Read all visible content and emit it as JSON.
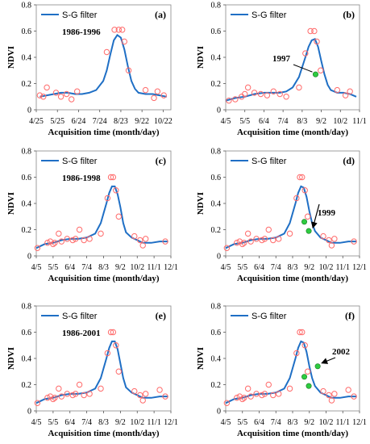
{
  "chart_data": [
    {
      "type": "scatter",
      "panel_label": "(a)",
      "legend": "S-G filter",
      "annotation": "1986-1996",
      "ylabel": "NDVI",
      "xlabel": "Acquisition time (month/day)",
      "ylim": [
        0,
        0.8
      ],
      "yticks": [
        "0",
        "0.2",
        "0.4",
        "0.6",
        "0.8"
      ],
      "xlim": [
        115,
        306
      ],
      "xticks": [
        {
          "x": 115,
          "label": "4/25"
        },
        {
          "x": 145,
          "label": "5/25"
        },
        {
          "x": 175,
          "label": "6/24"
        },
        {
          "x": 205,
          "label": "7/24"
        },
        {
          "x": 235,
          "label": "8/23"
        },
        {
          "x": 265,
          "label": "9/22"
        },
        {
          "x": 295,
          "label": "10/22"
        }
      ],
      "series": [
        {
          "name": "S-G filter",
          "kind": "line",
          "color": "#1f6fc5",
          "x": [
            120,
            130,
            140,
            150,
            160,
            170,
            180,
            190,
            200,
            210,
            215,
            220,
            225,
            230,
            235,
            240,
            245,
            250,
            255,
            260,
            270,
            280,
            290,
            300
          ],
          "y": [
            0.1,
            0.11,
            0.12,
            0.13,
            0.13,
            0.12,
            0.12,
            0.13,
            0.15,
            0.22,
            0.3,
            0.42,
            0.53,
            0.57,
            0.55,
            0.46,
            0.33,
            0.22,
            0.16,
            0.13,
            0.12,
            0.12,
            0.11,
            0.1
          ]
        },
        {
          "kind": "scatter",
          "marker": "open-circle",
          "color": "#ff6b6b",
          "x": [
            120,
            125,
            130,
            143,
            150,
            158,
            165,
            173,
            215,
            226,
            232,
            237,
            240,
            246,
            270,
            282,
            287,
            296
          ],
          "y": [
            0.11,
            0.1,
            0.17,
            0.13,
            0.1,
            0.12,
            0.08,
            0.14,
            0.44,
            0.61,
            0.61,
            0.61,
            0.52,
            0.3,
            0.15,
            0.09,
            0.14,
            0.11
          ]
        }
      ]
    },
    {
      "type": "scatter",
      "panel_label": "(b)",
      "legend": "S-G filter",
      "annotation": "1997",
      "ylabel": "NDVI",
      "xlabel": "Acquisition time (month/day)",
      "ylim": [
        0,
        0.8
      ],
      "yticks": [
        "0",
        "0.2",
        "0.4",
        "0.6",
        "0.8"
      ],
      "xlim": [
        95,
        305
      ],
      "xticks": [
        {
          "x": 95,
          "label": "4/5"
        },
        {
          "x": 125,
          "label": "5/5"
        },
        {
          "x": 155,
          "label": "6/4"
        },
        {
          "x": 185,
          "label": "7/4"
        },
        {
          "x": 215,
          "label": "8/3"
        },
        {
          "x": 245,
          "label": "9/2"
        },
        {
          "x": 275,
          "label": "10/2"
        },
        {
          "x": 305,
          "label": "11/1"
        }
      ],
      "series": [
        {
          "name": "S-G filter",
          "kind": "line",
          "color": "#1f6fc5",
          "x": [
            95,
            110,
            125,
            140,
            155,
            170,
            180,
            190,
            200,
            210,
            220,
            225,
            230,
            235,
            240,
            245,
            250,
            255,
            260,
            270,
            280,
            290,
            300
          ],
          "y": [
            0.07,
            0.09,
            0.1,
            0.12,
            0.13,
            0.13,
            0.13,
            0.14,
            0.17,
            0.25,
            0.4,
            0.48,
            0.53,
            0.54,
            0.48,
            0.37,
            0.27,
            0.19,
            0.15,
            0.13,
            0.13,
            0.12,
            0.1
          ]
        },
        {
          "kind": "scatter",
          "marker": "open-circle",
          "color": "#ff6b6b",
          "x": [
            100,
            110,
            120,
            125,
            130,
            140,
            150,
            160,
            170,
            180,
            190,
            210,
            220,
            228,
            234,
            238,
            244,
            270,
            283,
            290
          ],
          "y": [
            0.07,
            0.08,
            0.1,
            0.12,
            0.17,
            0.13,
            0.12,
            0.11,
            0.14,
            0.12,
            0.1,
            0.17,
            0.43,
            0.6,
            0.6,
            0.52,
            0.3,
            0.15,
            0.11,
            0.14
          ]
        },
        {
          "kind": "scatter",
          "marker": "filled-circle",
          "color": "#2ecc40",
          "x": [
            236
          ],
          "y": [
            0.27
          ]
        }
      ]
    },
    {
      "type": "scatter",
      "panel_label": "(c)",
      "legend": "S-G filter",
      "annotation": "1986-1998",
      "ylabel": "NDVI",
      "xlabel": "Acquisition time (month/day)",
      "ylim": [
        0,
        0.8
      ],
      "yticks": [
        "0",
        "0.2",
        "0.4",
        "0.6",
        "0.8"
      ],
      "xlim": [
        95,
        335
      ],
      "xticks": [
        {
          "x": 95,
          "label": "4/5"
        },
        {
          "x": 125,
          "label": "5/5"
        },
        {
          "x": 155,
          "label": "6/4"
        },
        {
          "x": 185,
          "label": "7/4"
        },
        {
          "x": 215,
          "label": "8/3"
        },
        {
          "x": 245,
          "label": "9/2"
        },
        {
          "x": 275,
          "label": "10/2"
        },
        {
          "x": 305,
          "label": "11/1"
        },
        {
          "x": 335,
          "label": "12/1"
        }
      ],
      "series": [
        {
          "name": "S-G filter",
          "kind": "line",
          "color": "#1f6fc5",
          "x": [
            95,
            110,
            125,
            140,
            155,
            170,
            185,
            200,
            210,
            220,
            225,
            230,
            235,
            240,
            245,
            250,
            255,
            265,
            275,
            285,
            300,
            315,
            330
          ],
          "y": [
            0.06,
            0.09,
            0.1,
            0.12,
            0.13,
            0.13,
            0.14,
            0.17,
            0.25,
            0.4,
            0.48,
            0.53,
            0.53,
            0.47,
            0.37,
            0.25,
            0.18,
            0.14,
            0.12,
            0.1,
            0.1,
            0.11,
            0.11
          ]
        },
        {
          "kind": "scatter",
          "marker": "open-circle",
          "color": "#ff6b6b",
          "x": [
            97,
            115,
            120,
            125,
            128,
            135,
            140,
            150,
            160,
            165,
            172,
            180,
            190,
            210,
            222,
            228,
            232,
            237,
            242,
            270,
            280,
            285,
            290,
            325
          ],
          "y": [
            0.06,
            0.1,
            0.11,
            0.09,
            0.1,
            0.17,
            0.11,
            0.13,
            0.12,
            0.13,
            0.2,
            0.12,
            0.13,
            0.17,
            0.44,
            0.6,
            0.6,
            0.5,
            0.3,
            0.15,
            0.12,
            0.08,
            0.13,
            0.11
          ]
        }
      ]
    },
    {
      "type": "scatter",
      "panel_label": "(d)",
      "legend": "S-G filter",
      "annotation": "1999",
      "ylabel": "NDVI",
      "xlabel": "Acquisition time (month/day)",
      "ylim": [
        0,
        0.8
      ],
      "yticks": [
        "0",
        "0.2",
        "0.4",
        "0.6",
        "0.8"
      ],
      "xlim": [
        95,
        335
      ],
      "xticks": [
        {
          "x": 95,
          "label": "4/5"
        },
        {
          "x": 125,
          "label": "5/5"
        },
        {
          "x": 155,
          "label": "6/4"
        },
        {
          "x": 185,
          "label": "7/4"
        },
        {
          "x": 215,
          "label": "8/3"
        },
        {
          "x": 245,
          "label": "9/2"
        },
        {
          "x": 275,
          "label": "10/2"
        },
        {
          "x": 305,
          "label": "11/1"
        },
        {
          "x": 335,
          "label": "12/1"
        }
      ],
      "series": [
        {
          "name": "S-G filter",
          "kind": "line",
          "color": "#1f6fc5",
          "x": [
            95,
            110,
            125,
            140,
            155,
            170,
            185,
            200,
            210,
            220,
            225,
            230,
            235,
            240,
            245,
            250,
            255,
            265,
            275,
            285,
            300,
            315,
            330
          ],
          "y": [
            0.06,
            0.09,
            0.1,
            0.12,
            0.13,
            0.13,
            0.14,
            0.17,
            0.25,
            0.4,
            0.48,
            0.53,
            0.52,
            0.45,
            0.34,
            0.25,
            0.19,
            0.14,
            0.12,
            0.1,
            0.1,
            0.11,
            0.11
          ]
        },
        {
          "kind": "scatter",
          "marker": "open-circle",
          "color": "#ff6b6b",
          "x": [
            97,
            115,
            120,
            125,
            128,
            135,
            140,
            150,
            160,
            165,
            172,
            180,
            190,
            210,
            222,
            228,
            232,
            237,
            242,
            270,
            280,
            285,
            290,
            325
          ],
          "y": [
            0.06,
            0.1,
            0.11,
            0.09,
            0.1,
            0.17,
            0.11,
            0.13,
            0.12,
            0.13,
            0.2,
            0.12,
            0.13,
            0.17,
            0.44,
            0.6,
            0.6,
            0.5,
            0.3,
            0.15,
            0.12,
            0.08,
            0.13,
            0.11
          ]
        },
        {
          "kind": "scatter",
          "marker": "filled-circle",
          "color": "#2ecc40",
          "x": [
            236,
            244
          ],
          "y": [
            0.26,
            0.19
          ]
        }
      ]
    },
    {
      "type": "scatter",
      "panel_label": "(e)",
      "legend": "S-G filter",
      "annotation": "1986-2001",
      "ylabel": "NDVI",
      "xlabel": "Acquisition time (month/day)",
      "ylim": [
        0,
        0.8
      ],
      "yticks": [
        "0",
        "0.2",
        "0.4",
        "0.6",
        "0.8"
      ],
      "xlim": [
        95,
        335
      ],
      "xticks": [
        {
          "x": 95,
          "label": "4/5"
        },
        {
          "x": 125,
          "label": "5/5"
        },
        {
          "x": 155,
          "label": "6/4"
        },
        {
          "x": 185,
          "label": "7/4"
        },
        {
          "x": 215,
          "label": "8/3"
        },
        {
          "x": 245,
          "label": "9/2"
        },
        {
          "x": 275,
          "label": "10/2"
        },
        {
          "x": 305,
          "label": "11/1"
        },
        {
          "x": 335,
          "label": "12/1"
        }
      ],
      "series": [
        {
          "name": "S-G filter",
          "kind": "line",
          "color": "#1f6fc5",
          "x": [
            95,
            110,
            125,
            140,
            155,
            170,
            185,
            200,
            210,
            220,
            225,
            230,
            235,
            240,
            245,
            250,
            255,
            265,
            275,
            285,
            300,
            315,
            330
          ],
          "y": [
            0.06,
            0.09,
            0.1,
            0.12,
            0.13,
            0.13,
            0.14,
            0.17,
            0.25,
            0.4,
            0.48,
            0.53,
            0.53,
            0.47,
            0.36,
            0.25,
            0.18,
            0.14,
            0.12,
            0.1,
            0.1,
            0.11,
            0.11
          ]
        },
        {
          "kind": "scatter",
          "marker": "open-circle",
          "color": "#ff6b6b",
          "x": [
            97,
            115,
            120,
            125,
            128,
            135,
            140,
            150,
            160,
            165,
            172,
            180,
            190,
            210,
            222,
            228,
            232,
            237,
            242,
            270,
            280,
            285,
            290,
            315,
            325
          ],
          "y": [
            0.06,
            0.1,
            0.11,
            0.09,
            0.1,
            0.17,
            0.11,
            0.13,
            0.12,
            0.13,
            0.2,
            0.12,
            0.13,
            0.17,
            0.44,
            0.6,
            0.6,
            0.5,
            0.3,
            0.15,
            0.12,
            0.08,
            0.13,
            0.16,
            0.11
          ]
        }
      ]
    },
    {
      "type": "scatter",
      "panel_label": "(f)",
      "legend": "S-G filter",
      "annotation": "2002",
      "ylabel": "NDVI",
      "xlabel": "Acquisition time (month/day)",
      "ylim": [
        0,
        0.8
      ],
      "yticks": [
        "0",
        "0.2",
        "0.4",
        "0.6",
        "0.8"
      ],
      "xlim": [
        95,
        335
      ],
      "xticks": [
        {
          "x": 95,
          "label": "4/5"
        },
        {
          "x": 125,
          "label": "5/5"
        },
        {
          "x": 155,
          "label": "6/4"
        },
        {
          "x": 185,
          "label": "7/4"
        },
        {
          "x": 215,
          "label": "8/3"
        },
        {
          "x": 245,
          "label": "9/2"
        },
        {
          "x": 275,
          "label": "10/2"
        },
        {
          "x": 305,
          "label": "11/1"
        },
        {
          "x": 335,
          "label": "12/1"
        }
      ],
      "series": [
        {
          "name": "S-G filter",
          "kind": "line",
          "color": "#1f6fc5",
          "x": [
            95,
            110,
            125,
            140,
            155,
            170,
            185,
            200,
            210,
            220,
            225,
            230,
            235,
            240,
            245,
            250,
            255,
            265,
            275,
            285,
            300,
            315,
            330
          ],
          "y": [
            0.06,
            0.09,
            0.1,
            0.12,
            0.13,
            0.13,
            0.14,
            0.17,
            0.25,
            0.4,
            0.48,
            0.53,
            0.52,
            0.45,
            0.34,
            0.25,
            0.19,
            0.14,
            0.12,
            0.1,
            0.1,
            0.11,
            0.11
          ]
        },
        {
          "kind": "scatter",
          "marker": "open-circle",
          "color": "#ff6b6b",
          "x": [
            97,
            115,
            120,
            125,
            128,
            135,
            140,
            150,
            160,
            165,
            172,
            180,
            190,
            210,
            222,
            228,
            232,
            237,
            242,
            270,
            280,
            285,
            290,
            315,
            325
          ],
          "y": [
            0.06,
            0.1,
            0.11,
            0.09,
            0.1,
            0.17,
            0.11,
            0.13,
            0.12,
            0.13,
            0.2,
            0.12,
            0.13,
            0.17,
            0.44,
            0.6,
            0.6,
            0.5,
            0.3,
            0.15,
            0.12,
            0.08,
            0.13,
            0.16,
            0.11
          ]
        },
        {
          "kind": "scatter",
          "marker": "filled-circle",
          "color": "#2ecc40",
          "x": [
            236,
            244,
            260
          ],
          "y": [
            0.26,
            0.19,
            0.34
          ]
        }
      ]
    }
  ]
}
